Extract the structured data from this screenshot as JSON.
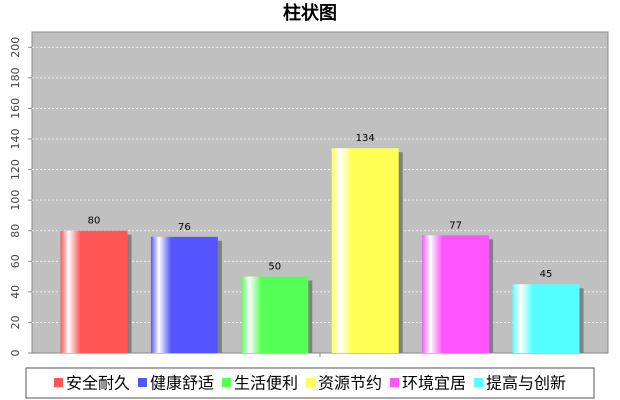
{
  "chart_data": {
    "type": "bar",
    "title": "柱状图",
    "categories": [
      null
    ],
    "series": [
      {
        "name": "安全耐久",
        "color": "#ff5555",
        "values": [
          80
        ]
      },
      {
        "name": "健康舒适",
        "color": "#5555ff",
        "values": [
          76
        ]
      },
      {
        "name": "生活便利",
        "color": "#55ff55",
        "values": [
          50
        ]
      },
      {
        "name": "资源节约",
        "color": "#ffff55",
        "values": [
          134
        ]
      },
      {
        "name": "环境宜居",
        "color": "#ff55ff",
        "values": [
          77
        ]
      },
      {
        "name": "提高与创新",
        "color": "#55ffff",
        "values": [
          45
        ]
      }
    ],
    "ylim": [
      0,
      210
    ],
    "yticks": [
      0,
      20,
      40,
      60,
      80,
      100,
      120,
      140,
      160,
      180,
      200
    ],
    "grid": true
  }
}
